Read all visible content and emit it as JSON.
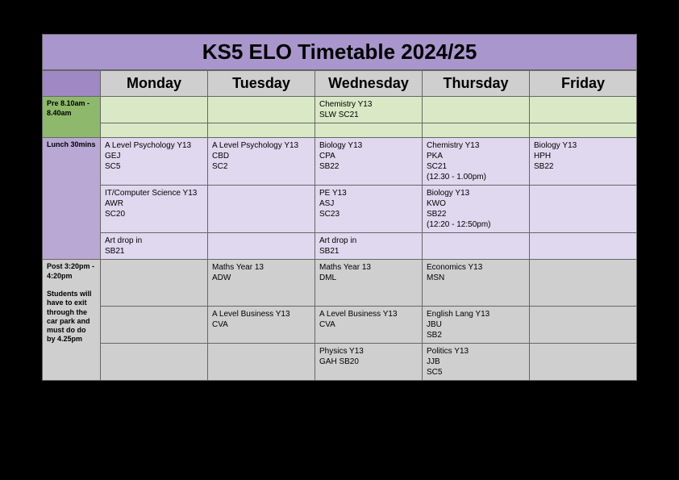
{
  "title": "KS5 ELO Timetable 2024/25",
  "days": [
    "Monday",
    "Tuesday",
    "Wednesday",
    "Thursday",
    "Friday"
  ],
  "pre": {
    "header": "Pre 8.10am - 8.40am",
    "rows": [
      {
        "mon": "",
        "tue": "",
        "wed": "Chemistry Y13\nSLW SC21",
        "thu": "",
        "fri": ""
      },
      {
        "mon": "",
        "tue": "",
        "wed": "",
        "thu": "",
        "fri": ""
      }
    ]
  },
  "lunch": {
    "header": "Lunch 30mins",
    "rows": [
      {
        "mon": "A Level Psychology Y13\nGEJ\nSC5",
        "tue": "A Level Psychology Y13\nCBD\nSC2",
        "wed": "Biology Y13\nCPA\nSB22",
        "thu": "Chemistry Y13\nPKA\nSC21\n(12.30 - 1.00pm)",
        "fri": "Biology Y13\nHPH\nSB22"
      },
      {
        "mon": "IT/Computer Science Y13\nAWR\nSC20",
        "tue": "",
        "wed": "PE Y13\nASJ\nSC23",
        "thu": "Biology Y13\nKWO\nSB22\n(12:20 - 12:50pm)",
        "fri": ""
      },
      {
        "mon": "Art drop in\nSB21",
        "tue": "",
        "wed": "Art drop in\nSB21",
        "thu": "",
        "fri": ""
      }
    ]
  },
  "post": {
    "header": "Post 3:20pm - 4:20pm\n\nStudents will have to exit through the car park and must do do by 4.25pm",
    "rows": [
      {
        "mon": "",
        "tue": "Maths Year 13\nADW",
        "wed": "Maths Year 13\nDML",
        "thu": "Economics Y13\nMSN",
        "fri": ""
      },
      {
        "mon": "",
        "tue": "A Level Business Y13\nCVA",
        "wed": "A Level Business Y13\nCVA",
        "thu": "English Lang Y13\nJBU\nSB2",
        "fri": ""
      },
      {
        "mon": "",
        "tue": "",
        "wed": "Physics Y13\nGAH SB20",
        "thu": "Politics Y13\nJJB\nSC5",
        "fri": ""
      }
    ]
  },
  "colors": {
    "page_background": "#000000",
    "title_background": "#a996cc",
    "day_header_background": "#cfcfcf",
    "corner_background": "#9f88c4",
    "pre_header_background": "#8eb96c",
    "pre_cell_background": "#d9e9c6",
    "lunch_header_background": "#b9a8d4",
    "lunch_cell_background": "#e0d8ee",
    "post_background": "#cfcfcf",
    "border_color": "#666666"
  }
}
